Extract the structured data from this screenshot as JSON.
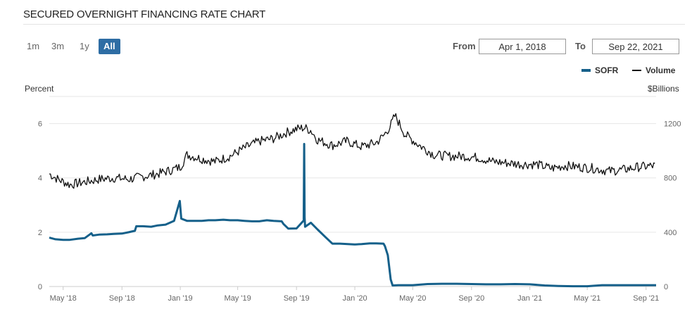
{
  "header": {
    "title": "SECURED OVERNIGHT FINANCING RATE CHART"
  },
  "range_buttons": [
    {
      "label": "1m",
      "active": false
    },
    {
      "label": "3m",
      "active": false
    },
    {
      "label": "1y",
      "active": false
    },
    {
      "label": "All",
      "active": true
    }
  ],
  "date_range": {
    "from_label": "From",
    "from_value": "Apr 1, 2018",
    "to_label": "To",
    "to_value": "Sep 22, 2021"
  },
  "chart_data": {
    "type": "line",
    "title": "SECURED OVERNIGHT FINANCING RATE CHART",
    "xlabel": "",
    "ylabel_left": "Percent",
    "ylabel_right": "$Billions",
    "ylim_left": [
      0,
      7
    ],
    "ylim_right": [
      0,
      1400
    ],
    "yticks_left": [
      "0",
      "2",
      "4",
      "6"
    ],
    "yticks_right": [
      "0",
      "400",
      "800",
      "1200"
    ],
    "x_tick_labels": [
      "May '18",
      "Sep '18",
      "Jan '19",
      "May '19",
      "Sep '19",
      "Jan '20",
      "May '20",
      "Sep '20",
      "Jan '21",
      "May '21",
      "Sep '21"
    ],
    "x_ticks": [
      "2018-05-01",
      "2018-09-01",
      "2019-01-01",
      "2019-05-01",
      "2019-09-01",
      "2020-01-01",
      "2020-05-01",
      "2020-09-01",
      "2021-01-01",
      "2021-05-01",
      "2021-09-01"
    ],
    "xlim": [
      "2018-04-02",
      "2021-09-22"
    ],
    "grid": true,
    "legend": "top-right",
    "series": [
      {
        "name": "SOFR",
        "axis": "left",
        "color": "#15608a",
        "x": [
          "2018-04-02",
          "2018-04-15",
          "2018-05-01",
          "2018-05-15",
          "2018-06-01",
          "2018-06-15",
          "2018-06-29",
          "2018-07-02",
          "2018-07-15",
          "2018-08-01",
          "2018-08-15",
          "2018-09-01",
          "2018-09-15",
          "2018-09-28",
          "2018-10-01",
          "2018-10-15",
          "2018-11-01",
          "2018-11-15",
          "2018-12-01",
          "2018-12-19",
          "2018-12-31",
          "2019-01-03",
          "2019-01-15",
          "2019-02-01",
          "2019-02-15",
          "2019-03-01",
          "2019-03-15",
          "2019-04-01",
          "2019-04-15",
          "2019-05-01",
          "2019-05-15",
          "2019-05-31",
          "2019-06-15",
          "2019-07-01",
          "2019-07-15",
          "2019-08-01",
          "2019-08-05",
          "2019-08-15",
          "2019-09-01",
          "2019-09-16",
          "2019-09-17",
          "2019-09-18",
          "2019-09-19",
          "2019-10-01",
          "2019-10-15",
          "2019-10-31",
          "2019-11-15",
          "2019-12-01",
          "2019-12-31",
          "2020-01-02",
          "2020-01-15",
          "2020-02-01",
          "2020-02-15",
          "2020-03-01",
          "2020-03-04",
          "2020-03-10",
          "2020-03-16",
          "2020-03-20",
          "2020-04-01",
          "2020-05-01",
          "2020-06-01",
          "2020-07-01",
          "2020-08-01",
          "2020-09-01",
          "2020-10-01",
          "2020-11-01",
          "2020-12-01",
          "2021-01-01",
          "2021-02-01",
          "2021-03-01",
          "2021-04-01",
          "2021-05-01",
          "2021-06-01",
          "2021-07-01",
          "2021-08-01",
          "2021-09-22"
        ],
        "values": [
          1.8,
          1.74,
          1.72,
          1.72,
          1.76,
          1.78,
          1.96,
          1.88,
          1.91,
          1.92,
          1.94,
          1.95,
          2.0,
          2.05,
          2.22,
          2.22,
          2.2,
          2.25,
          2.28,
          2.42,
          3.15,
          2.5,
          2.42,
          2.42,
          2.42,
          2.44,
          2.44,
          2.46,
          2.44,
          2.44,
          2.42,
          2.4,
          2.4,
          2.44,
          2.42,
          2.4,
          2.3,
          2.13,
          2.14,
          2.43,
          5.25,
          2.55,
          2.2,
          2.35,
          2.1,
          1.83,
          1.58,
          1.58,
          1.55,
          1.55,
          1.56,
          1.59,
          1.59,
          1.58,
          1.48,
          1.15,
          0.26,
          0.04,
          0.05,
          0.05,
          0.09,
          0.1,
          0.1,
          0.09,
          0.08,
          0.08,
          0.09,
          0.08,
          0.04,
          0.02,
          0.01,
          0.01,
          0.05,
          0.05,
          0.05,
          0.05
        ]
      },
      {
        "name": "Volume",
        "axis": "right",
        "color": "#111111",
        "x": [
          "2018-04-02",
          "2018-04-20",
          "2018-05-15",
          "2018-06-15",
          "2018-07-15",
          "2018-08-15",
          "2018-09-15",
          "2018-10-15",
          "2018-11-15",
          "2018-12-15",
          "2019-01-01",
          "2019-01-15",
          "2019-02-15",
          "2019-03-15",
          "2019-04-15",
          "2019-05-15",
          "2019-06-15",
          "2019-07-15",
          "2019-08-15",
          "2019-09-01",
          "2019-09-17",
          "2019-10-01",
          "2019-10-15",
          "2019-11-15",
          "2019-12-15",
          "2020-01-15",
          "2020-02-15",
          "2020-03-01",
          "2020-03-15",
          "2020-03-25",
          "2020-04-15",
          "2020-05-15",
          "2020-06-15",
          "2020-07-15",
          "2020-08-15",
          "2020-09-15",
          "2020-10-15",
          "2020-11-15",
          "2020-12-15",
          "2021-01-15",
          "2021-02-15",
          "2021-03-15",
          "2021-04-15",
          "2021-05-15",
          "2021-06-15",
          "2021-07-15",
          "2021-08-15",
          "2021-09-22"
        ],
        "values": [
          830,
          790,
          750,
          770,
          790,
          800,
          790,
          810,
          830,
          860,
          880,
          970,
          940,
          920,
          960,
          1020,
          1070,
          1090,
          1140,
          1160,
          1170,
          1150,
          1080,
          1040,
          1070,
          1030,
          1060,
          1110,
          1180,
          1260,
          1120,
          1040,
          970,
          960,
          960,
          950,
          920,
          910,
          900,
          900,
          870,
          890,
          880,
          870,
          850,
          860,
          880,
          890
        ]
      }
    ]
  }
}
